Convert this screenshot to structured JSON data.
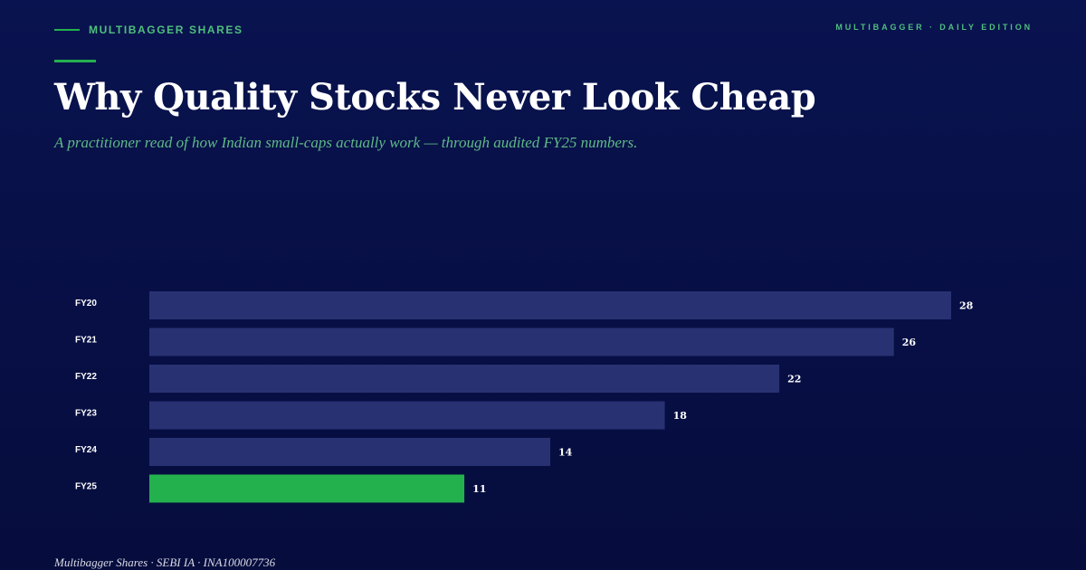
{
  "header": {
    "brand": "MULTIBAGGER SHARES",
    "edition": "MULTIBAGGER · DAILY EDITION"
  },
  "article": {
    "title": "Why Quality Stocks Never Look Cheap",
    "subtitle": "A practitioner read of how Indian small-caps actually work — through audited FY25 numbers."
  },
  "footer": {
    "text": "Multibagger Shares · SEBI IA · INA100007736"
  },
  "colors": {
    "background": "#08114a",
    "bar": "#283273",
    "highlight_bar": "#23b14d",
    "accent": "#4fbf7d"
  },
  "chart_data": {
    "type": "bar",
    "orientation": "horizontal",
    "categories": [
      "FY20",
      "FY21",
      "FY22",
      "FY23",
      "FY24",
      "FY25"
    ],
    "values": [
      28,
      26,
      22,
      18,
      14,
      11
    ],
    "highlight": "FY25",
    "title": "",
    "xlabel": "",
    "ylabel": "",
    "xlim": [
      0,
      28
    ],
    "grid": false,
    "legend": "none"
  }
}
